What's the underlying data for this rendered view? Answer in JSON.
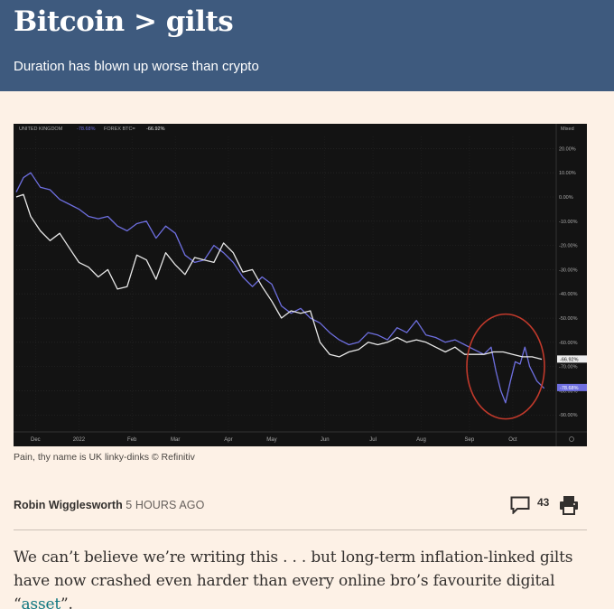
{
  "article": {
    "headline": "Bitcoin > gilts",
    "standfirst": "Duration has blown up worse than crypto",
    "caption": "Pain, thy name is UK linky-dinks © Refinitiv",
    "author": "Robin Wigglesworth",
    "time": "5 HOURS AGO",
    "comment_count": "43",
    "body_before": "We can’t believe we’re writing this . . . but long-term inflation-linked gilts have now crashed even harder than every online bro’s favourite digital “",
    "body_link": "asset",
    "body_after": "”."
  },
  "icons": {
    "comment": "comment-icon",
    "print": "print-icon"
  },
  "colors": {
    "header_bg": "#3e5a7e",
    "page_bg": "#fdf1e6",
    "chart_bg": "#131313",
    "gilt_line": "#6e6fe0",
    "btc_line": "#e8e8e8",
    "highlight_circle": "#c0392b",
    "link": "#0d7680"
  },
  "chart_data": {
    "type": "line",
    "legend": [
      {
        "name": "UNITED KINGDOM",
        "value": "-78.68%"
      },
      {
        "name": "FOREX BTC=",
        "value": "-66.92%"
      }
    ],
    "scale_label": "Mixed",
    "x_tick_labels": [
      "Dec",
      "2022",
      "Feb",
      "Mar",
      "Apr",
      "May",
      "Jun",
      "Jul",
      "Aug",
      "Sep",
      "Oct"
    ],
    "y_tick_labels": [
      "20.00%",
      "10.00%",
      "0.00%",
      "-10.00%",
      "-20.00%",
      "-30.00%",
      "-40.00%",
      "-50.00%",
      "-60.00%",
      "-70.00%",
      "-80.00%",
      "-90.00%"
    ],
    "y_ticks": [
      20,
      10,
      0,
      -10,
      -20,
      -30,
      -40,
      -50,
      -60,
      -70,
      -80,
      -90
    ],
    "ylim": [
      25,
      -97
    ],
    "x_ticks": [
      0.4,
      1.3,
      2.4,
      3.3,
      4.4,
      5.3,
      6.4,
      7.4,
      8.4,
      9.4,
      10.3
    ],
    "xlim": [
      0,
      11.2
    ],
    "end_labels": {
      "gilt": "-78.68%",
      "btc": "-66.92%"
    },
    "series": [
      {
        "name": "UNITED KINGDOM",
        "x": [
          0,
          0.15,
          0.3,
          0.5,
          0.7,
          0.9,
          1.1,
          1.3,
          1.5,
          1.7,
          1.9,
          2.1,
          2.3,
          2.5,
          2.7,
          2.9,
          3.1,
          3.3,
          3.5,
          3.7,
          3.9,
          4.1,
          4.3,
          4.5,
          4.7,
          4.9,
          5.1,
          5.3,
          5.5,
          5.7,
          5.9,
          6.1,
          6.3,
          6.5,
          6.7,
          6.9,
          7.1,
          7.3,
          7.5,
          7.7,
          7.9,
          8.1,
          8.3,
          8.5,
          8.7,
          8.9,
          9.1,
          9.3,
          9.5,
          9.7,
          9.85,
          9.95,
          10.05,
          10.15,
          10.25,
          10.35,
          10.45,
          10.55,
          10.65,
          10.8,
          10.95
        ],
        "y": [
          2,
          8,
          10,
          4,
          3,
          -1,
          -3,
          -5,
          -8,
          -9,
          -8,
          -12,
          -14,
          -11,
          -10,
          -17,
          -12,
          -15,
          -24,
          -27,
          -26,
          -20,
          -23,
          -27,
          -33,
          -37,
          -33,
          -36,
          -45,
          -48,
          -46,
          -50,
          -52,
          -56,
          -59,
          -61,
          -60,
          -56,
          -57,
          -59,
          -54,
          -56,
          -51,
          -57,
          -58,
          -60,
          -59,
          -61,
          -63,
          -65,
          -62,
          -72,
          -80,
          -85,
          -76,
          -68,
          -69,
          -62,
          -70,
          -76,
          -79
        ]
      },
      {
        "name": "FOREX BTC=",
        "x": [
          0,
          0.15,
          0.3,
          0.5,
          0.7,
          0.9,
          1.1,
          1.3,
          1.5,
          1.7,
          1.9,
          2.1,
          2.3,
          2.5,
          2.7,
          2.9,
          3.1,
          3.3,
          3.5,
          3.7,
          3.9,
          4.1,
          4.3,
          4.5,
          4.7,
          4.9,
          5.1,
          5.3,
          5.5,
          5.7,
          5.9,
          6.1,
          6.3,
          6.5,
          6.7,
          6.9,
          7.1,
          7.3,
          7.5,
          7.7,
          7.9,
          8.1,
          8.3,
          8.5,
          8.7,
          8.9,
          9.1,
          9.3,
          9.5,
          9.7,
          9.9,
          10.1,
          10.3,
          10.5,
          10.7,
          10.9
        ],
        "y": [
          0,
          1,
          -8,
          -14,
          -18,
          -15,
          -21,
          -27,
          -29,
          -33,
          -30,
          -38,
          -37,
          -24,
          -26,
          -34,
          -23,
          -28,
          -32,
          -25,
          -26,
          -27,
          -19,
          -23,
          -31,
          -30,
          -37,
          -43,
          -50,
          -47,
          -48,
          -47,
          -60,
          -65,
          -66,
          -64,
          -63,
          -60,
          -61,
          -60,
          -58,
          -60,
          -59,
          -60,
          -62,
          -64,
          -62,
          -65,
          -65,
          -65,
          -64,
          -64,
          -65,
          -66,
          -66,
          -67
        ]
      }
    ]
  }
}
